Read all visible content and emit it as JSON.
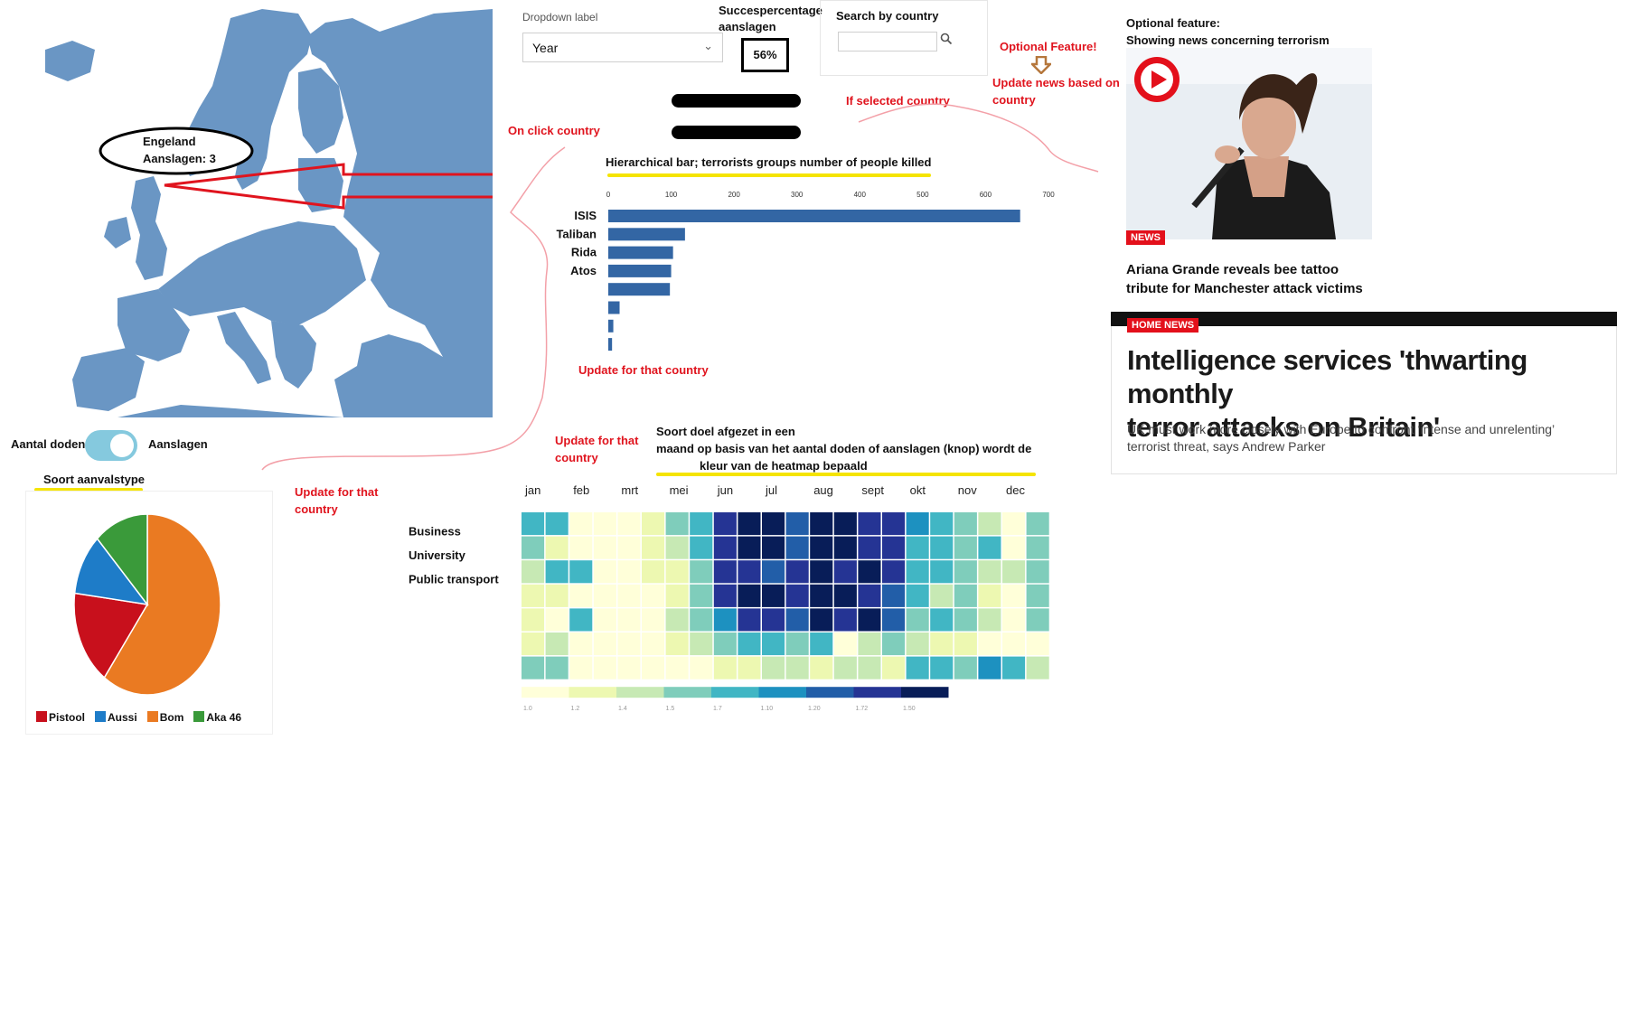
{
  "map": {
    "callout_country": "Engeland",
    "callout_attacks": "Aanslagen: 3",
    "colors": {
      "land": "#6a96c4",
      "sea": "#ffffff",
      "arrow": "#e0141e"
    }
  },
  "controls": {
    "dropdown_label": "Dropdown label",
    "dropdown_value": "Year",
    "success_label_line1": "Succespercentage",
    "success_label_line2": "aanslagen",
    "success_value": "56%",
    "search_label": "Search by country",
    "search_value": "",
    "toggle_left": "Aantal doden",
    "toggle_right": "Aanslagen"
  },
  "annotations": {
    "on_click_country": "On click country",
    "if_selected_country": "If selected country",
    "optional_feature": "Optional Feature!",
    "update_news_line1": "Update news based on",
    "update_news_line2": "country",
    "update_for_country_bar": "Update for that country",
    "update_for_country_heat_line1": "Update for that",
    "update_for_country_heat_line2": "country",
    "update_for_country_pie_line1": "Update for that",
    "update_for_country_pie_line2": "country"
  },
  "bar_section": {
    "title": "Hierarchical bar;  terrorists groups number of people killed"
  },
  "pie_section": {
    "title": "Soort aanvalstype"
  },
  "heatmap_section": {
    "title_line1": "Soort doel afgezet in een",
    "title_line2": "maand  op basis van het aantal doden of aanslagen (knop) wordt de",
    "title_line3": "kleur van de heatmap bepaald"
  },
  "news": {
    "optional_label_line1": "Optional feature:",
    "optional_label_line2": "Showing news concerning terrorism",
    "card1_tag": "NEWS",
    "card1_headline_line1": "Ariana Grande reveals bee tattoo",
    "card1_headline_line2": "tribute for Manchester attack victims",
    "card2_tag": "HOME NEWS",
    "card2_headline_line1": "Intelligence services 'thwarting monthly",
    "card2_headline_line2": "terror attacks on Britain'",
    "card2_sub_line1": "UK must work more closely with Europe to confront ‘intense and unrelenting’",
    "card2_sub_line2": "terrorist threat, says Andrew Parker"
  },
  "chart_data": [
    {
      "type": "bar",
      "orientation": "horizontal",
      "categories": [
        "ISIS",
        "Taliban",
        "Rida",
        "Atos",
        "",
        "",
        "",
        ""
      ],
      "values": [
        655,
        122,
        103,
        100,
        98,
        18,
        8,
        6
      ],
      "xticks": [
        "0",
        "100",
        "200",
        "300",
        "400",
        "500",
        "600",
        "700"
      ],
      "xlim": [
        0,
        700
      ],
      "color": "#3366a4"
    },
    {
      "type": "pie",
      "slices": [
        {
          "label": "Pistool",
          "value": 17,
          "color": "#c8101c"
        },
        {
          "label": "Aussi",
          "value": 11,
          "color": "#1e7cc8"
        },
        {
          "label": "Bom",
          "value": 60,
          "color": "#ea7a22"
        },
        {
          "label": "Aka 46",
          "value": 12,
          "color": "#3a9a3a"
        }
      ]
    },
    {
      "type": "heatmap",
      "months": [
        "jan",
        "feb",
        "mrt",
        "mei",
        "jun",
        "jul",
        "aug",
        "sept",
        "okt",
        "nov",
        "dec"
      ],
      "row_labels": [
        "Business",
        "University",
        "Public transport",
        "",
        "",
        "",
        ""
      ],
      "levels": [
        [
          4,
          4,
          0,
          0,
          0,
          1,
          3,
          4,
          7,
          8,
          8,
          6,
          8,
          8,
          7,
          7,
          5,
          4,
          3,
          2,
          0,
          3
        ],
        [
          3,
          1,
          0,
          0,
          0,
          1,
          2,
          4,
          7,
          8,
          8,
          6,
          8,
          8,
          7,
          7,
          4,
          4,
          3,
          4,
          0,
          3
        ],
        [
          2,
          4,
          4,
          0,
          0,
          1,
          1,
          3,
          7,
          7,
          6,
          7,
          8,
          7,
          8,
          7,
          4,
          4,
          3,
          2,
          2,
          3
        ],
        [
          1,
          1,
          0,
          0,
          0,
          0,
          1,
          3,
          7,
          8,
          8,
          7,
          8,
          8,
          7,
          6,
          4,
          2,
          3,
          1,
          0,
          3
        ],
        [
          1,
          0,
          4,
          0,
          0,
          0,
          2,
          3,
          5,
          7,
          7,
          6,
          8,
          7,
          8,
          6,
          3,
          4,
          3,
          2,
          0,
          3
        ],
        [
          1,
          2,
          0,
          0,
          0,
          0,
          1,
          2,
          3,
          4,
          4,
          3,
          4,
          0,
          2,
          3,
          2,
          1,
          1,
          0,
          0,
          0
        ],
        [
          3,
          3,
          0,
          0,
          0,
          0,
          0,
          0,
          1,
          1,
          2,
          2,
          1,
          2,
          2,
          1,
          4,
          4,
          3,
          5,
          4,
          2
        ]
      ],
      "palette": [
        "#ffffd9",
        "#edf8b1",
        "#c7e9b4",
        "#7fcdbb",
        "#41b6c4",
        "#1d91c0",
        "#225ea8",
        "#253494",
        "#081d58"
      ],
      "scale_ticks": [
        "1.0",
        "1.2",
        "1.4",
        "1.5",
        "1.7",
        "1.10",
        "1.20",
        "1.72",
        "1.50"
      ]
    }
  ]
}
